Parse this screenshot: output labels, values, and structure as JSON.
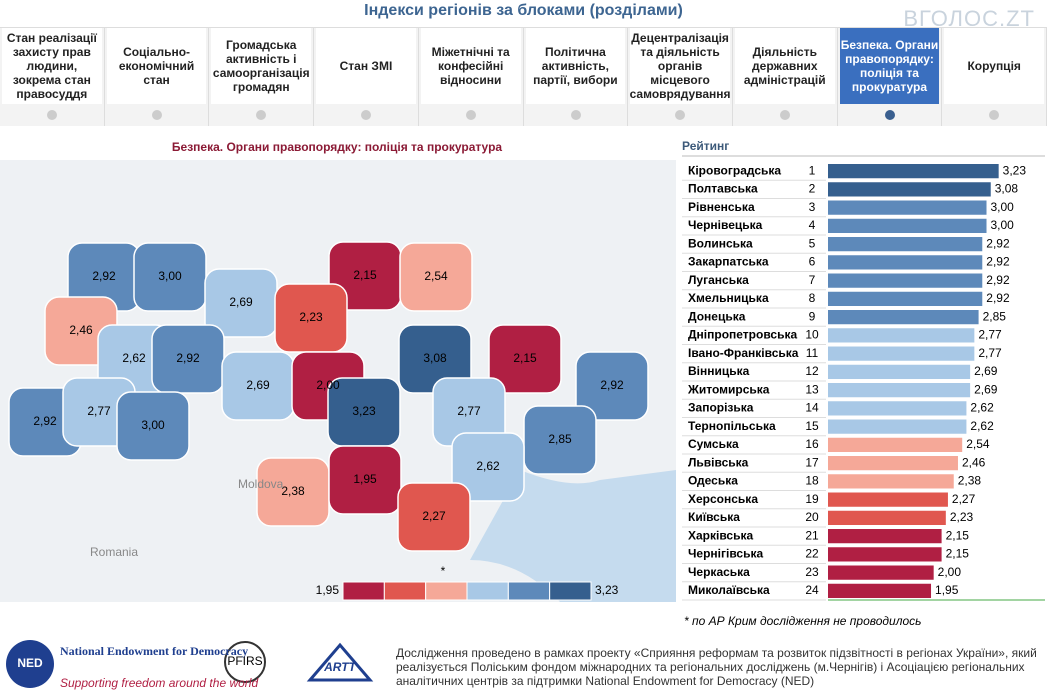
{
  "header": {
    "title": "Індекси регіонів за блоками (розділами)",
    "watermark": "ВГОЛОС.ZT"
  },
  "tabs": [
    "Стан реалізації захисту прав людини, зокрема стан правосуддя",
    "Соціально-економічний стан",
    "Громадська активність і самоорганізація громадян",
    "Стан ЗМІ",
    "Міжетнічні та конфесійні відносини",
    "Політична активність, партії, вибори",
    "Децентралізація та діяльність органів місцевого самоврядування",
    "Діяльність державних адміністрацій",
    "Безпека. Органи правопорядку: поліція та прокуратура",
    "Корупція"
  ],
  "active_tab": 8,
  "map": {
    "title": "Безпека. Органи правопорядку: поліція та прокуратура",
    "values": [
      2.92,
      3.0,
      2.69,
      2.15,
      2.54,
      2.46,
      2.62,
      2.92,
      2.23,
      2.69,
      2.0,
      3.08,
      2.15,
      2.92,
      2.92,
      2.77,
      3.0,
      3.23,
      2.77,
      2.85,
      2.62,
      2.38,
      1.95,
      2.27
    ],
    "value_labels": [
      "2,92",
      "3,00",
      "2,69",
      "2,15",
      "2,54",
      "2,46",
      "2,62",
      "2,92",
      "2,23",
      "2,69",
      "2,00",
      "3,08",
      "2,15",
      "2,92",
      "2,92",
      "2,77",
      "3,00",
      "3,23",
      "2,77",
      "2,85",
      "2,62",
      "2,38",
      "1,95",
      "2,27"
    ],
    "countries": [
      "Moldova",
      "Romania"
    ],
    "legend": [
      {
        "value": 1.95,
        "label": "1,95"
      },
      {
        "value": 3.23,
        "label": "3,23"
      }
    ],
    "legend_note": "*",
    "colors": [
      "#b01f43",
      "#e0574f",
      "#f5a898",
      "#a8c8e6",
      "#5d89ba",
      "#355f8e"
    ]
  },
  "chart_data": {
    "type": "bar",
    "title": "Рейтинг",
    "categories": [
      "Кіровоградська",
      "Полтавська",
      "Рівненська",
      "Чернівецька",
      "Волинська",
      "Закарпатська",
      "Луганська",
      "Хмельницька",
      "Донецька",
      "Дніпропетровська",
      "Івано-Франківська",
      "Вінницька",
      "Житомирська",
      "Запорізька",
      "Тернопільська",
      "Сумська",
      "Львівська",
      "Одеська",
      "Херсонська",
      "Київська",
      "Харківська",
      "Чернігівська",
      "Черкаська",
      "Миколаївська"
    ],
    "ranks": [
      1,
      2,
      3,
      4,
      5,
      6,
      7,
      8,
      9,
      10,
      11,
      12,
      13,
      14,
      15,
      16,
      17,
      18,
      19,
      20,
      21,
      22,
      23,
      24
    ],
    "values": [
      3.23,
      3.08,
      3.0,
      3.0,
      2.92,
      2.92,
      2.92,
      2.92,
      2.85,
      2.77,
      2.77,
      2.69,
      2.69,
      2.62,
      2.62,
      2.54,
      2.46,
      2.38,
      2.27,
      2.23,
      2.15,
      2.15,
      2.0,
      1.95
    ],
    "value_labels": [
      "3,23",
      "3,08",
      "3,00",
      "3,00",
      "2,92",
      "2,92",
      "2,92",
      "2,92",
      "2,85",
      "2,77",
      "2,77",
      "2,69",
      "2,69",
      "2,62",
      "2,62",
      "2,54",
      "2,46",
      "2,38",
      "2,27",
      "2,23",
      "2,15",
      "2,15",
      "2,00",
      "1,95"
    ],
    "xlim": [
      0,
      3.35
    ]
  },
  "footnote": "*  по АР Крим дослідження не проводилось",
  "footer": {
    "ned_short": "NED",
    "ned_name": "National Endowment for Democracy",
    "ned_slogan": "Supporting freedom around the world",
    "logo2": "PFIRS",
    "logo3": "ARTT",
    "text": "Дослідження проведено в рамках проекту «Сприяння реформам та розвиток підзвітності в регіонах України», який реалізується  Поліським фондом міжнародних та регіональних досліджень (м.Чернігів) і Асоціацією регіональних аналітичних центрів за підтримки National Endowment for Democracy (NED)"
  }
}
